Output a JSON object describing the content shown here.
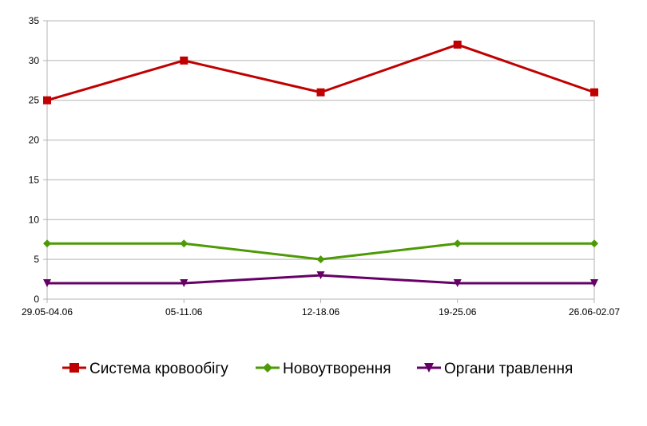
{
  "chart_data": {
    "type": "line",
    "categories": [
      "29.05-04.06",
      "05-11.06",
      "12-18.06",
      "19-25.06",
      "26.06-02.07"
    ],
    "ylim": [
      0,
      35
    ],
    "yticks": [
      0,
      5,
      10,
      15,
      20,
      25,
      30,
      35
    ],
    "grid": true,
    "legend_position": "bottom",
    "series": [
      {
        "name": "Система кровообігу",
        "values": [
          25,
          30,
          26,
          32,
          26
        ],
        "color": "#c00000",
        "marker": "square"
      },
      {
        "name": "Новоутворення",
        "values": [
          7,
          7,
          5,
          7,
          7
        ],
        "color": "#4e9a06",
        "marker": "diamond"
      },
      {
        "name": "Органи травлення",
        "values": [
          2,
          2,
          3,
          2,
          2
        ],
        "color": "#660066",
        "marker": "triangle-down"
      }
    ]
  }
}
